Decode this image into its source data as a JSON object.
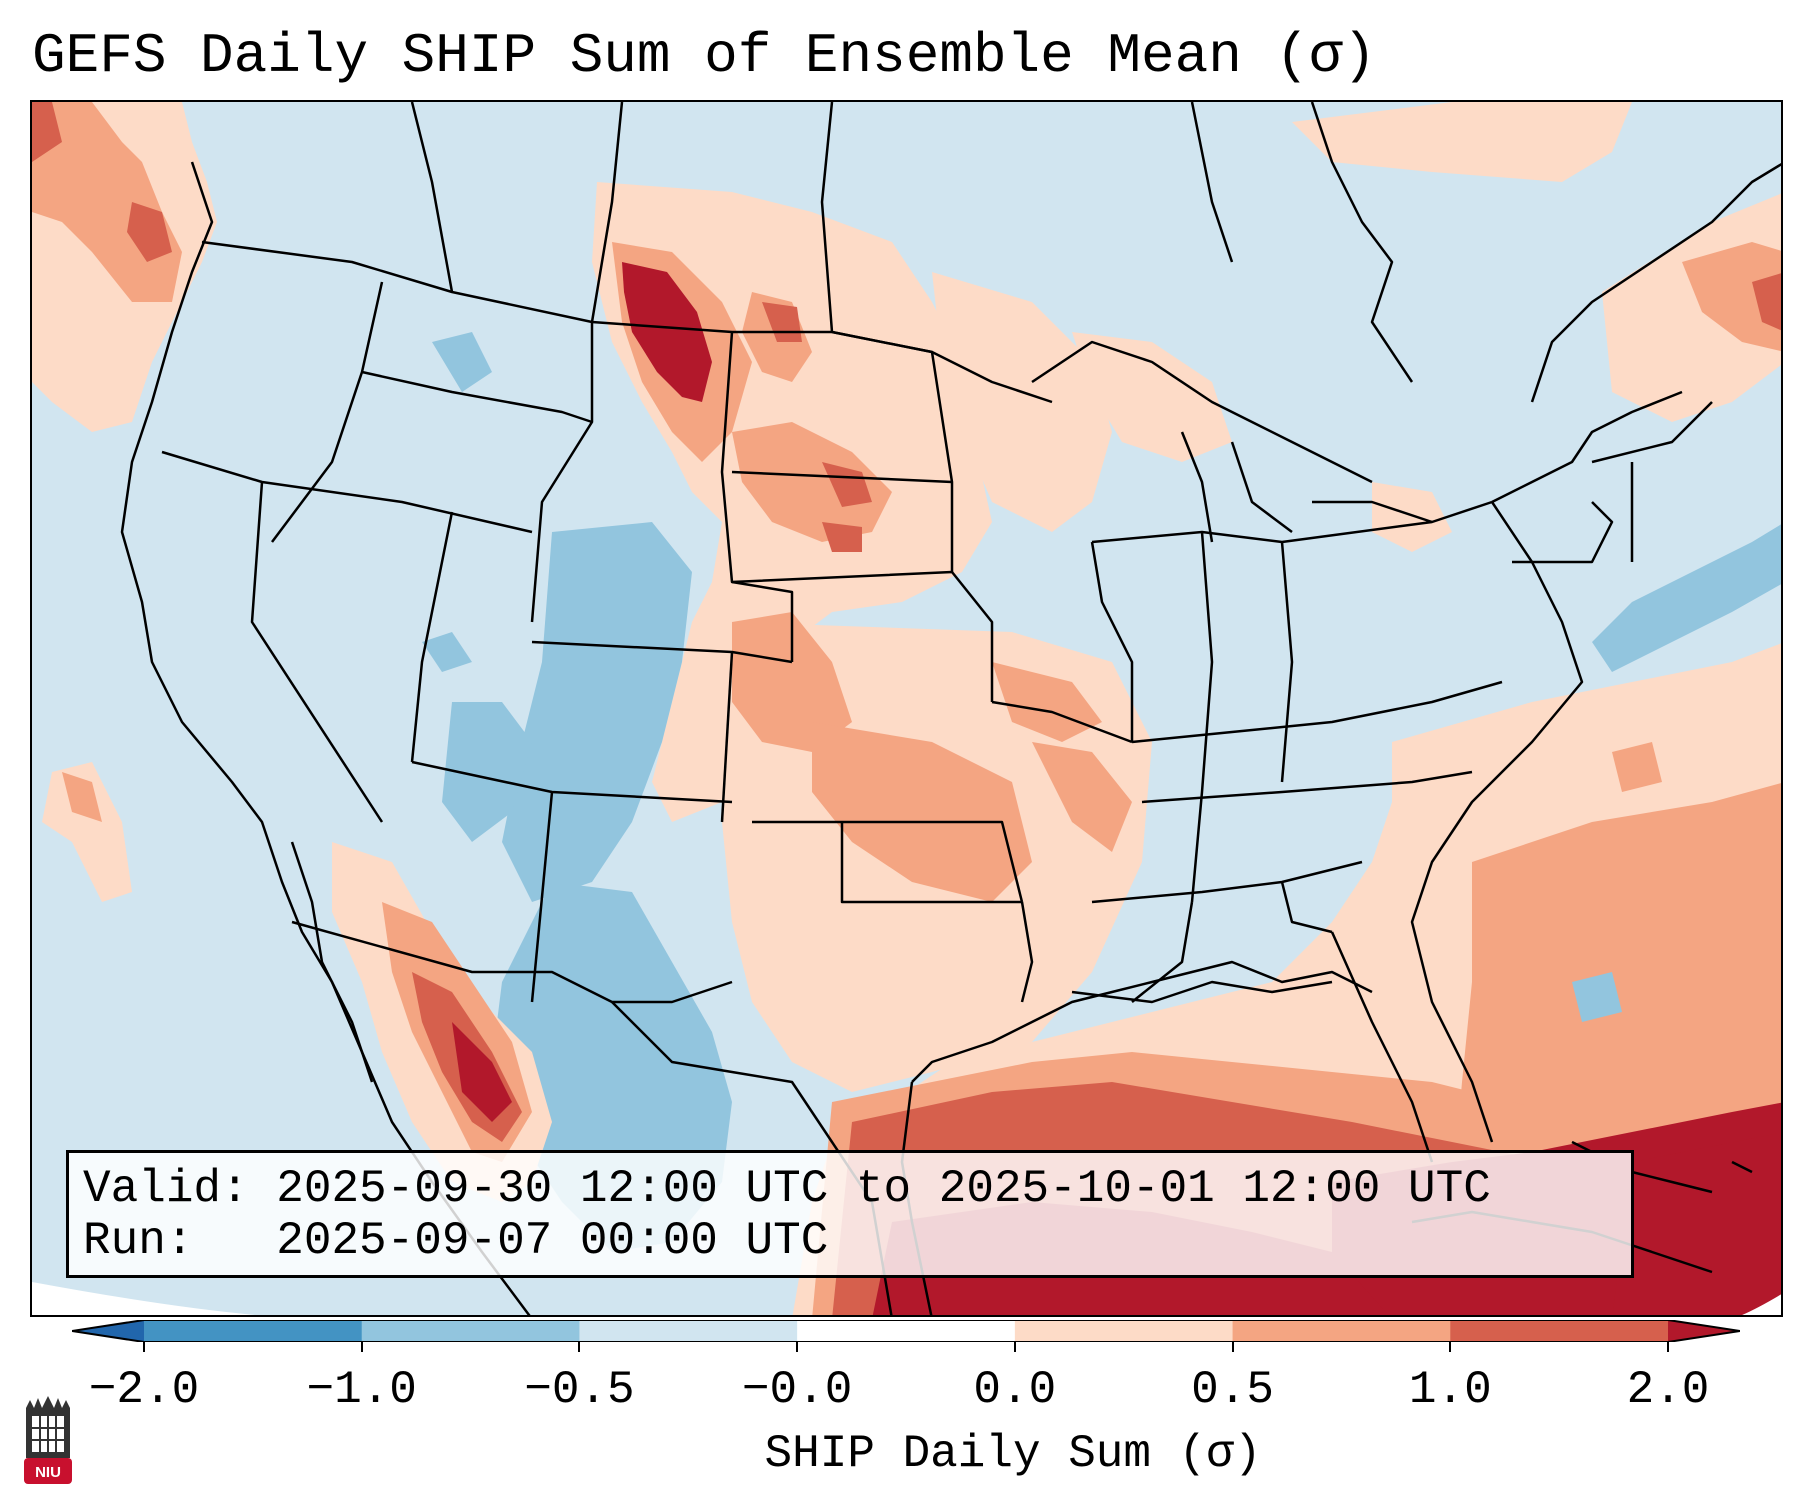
{
  "title": "GEFS Daily SHIP Sum of Ensemble Mean (σ)",
  "map": {
    "region": "Continental United States, Mexico, Gulf of Mexico and western Atlantic",
    "description_fields": {
      "background": "#d1e5f0",
      "state_border_color": "#000000"
    }
  },
  "valid_box": {
    "valid_line": "Valid: 2025-09-30 12:00 UTC to 2025-10-01 12:00 UTC",
    "run_line": "Run:   2025-09-07 00:00 UTC"
  },
  "colorbar": {
    "label": "SHIP Daily Sum (σ)",
    "ticks": [
      "−2.0",
      "−1.0",
      "−0.5",
      "−0.0",
      "0.0",
      "0.5",
      "1.0",
      "2.0"
    ],
    "bins": [
      {
        "from": "below",
        "to": -2.0,
        "color": "#2166ac"
      },
      {
        "from": -2.0,
        "to": -1.0,
        "color": "#4393c3"
      },
      {
        "from": -1.0,
        "to": -0.5,
        "color": "#92c5de"
      },
      {
        "from": -0.5,
        "to": -0.0,
        "color": "#d1e5f0"
      },
      {
        "from": -0.0,
        "to": 0.0,
        "color": "#ffffff"
      },
      {
        "from": 0.0,
        "to": 0.5,
        "color": "#fddbc7"
      },
      {
        "from": 0.5,
        "to": 1.0,
        "color": "#f4a582"
      },
      {
        "from": 1.0,
        "to": 2.0,
        "color": "#d6604d"
      },
      {
        "from": 2.0,
        "to": "above",
        "color": "#b2182b"
      }
    ]
  },
  "logo": {
    "text": "NIU",
    "icon": "university-logo-icon"
  }
}
